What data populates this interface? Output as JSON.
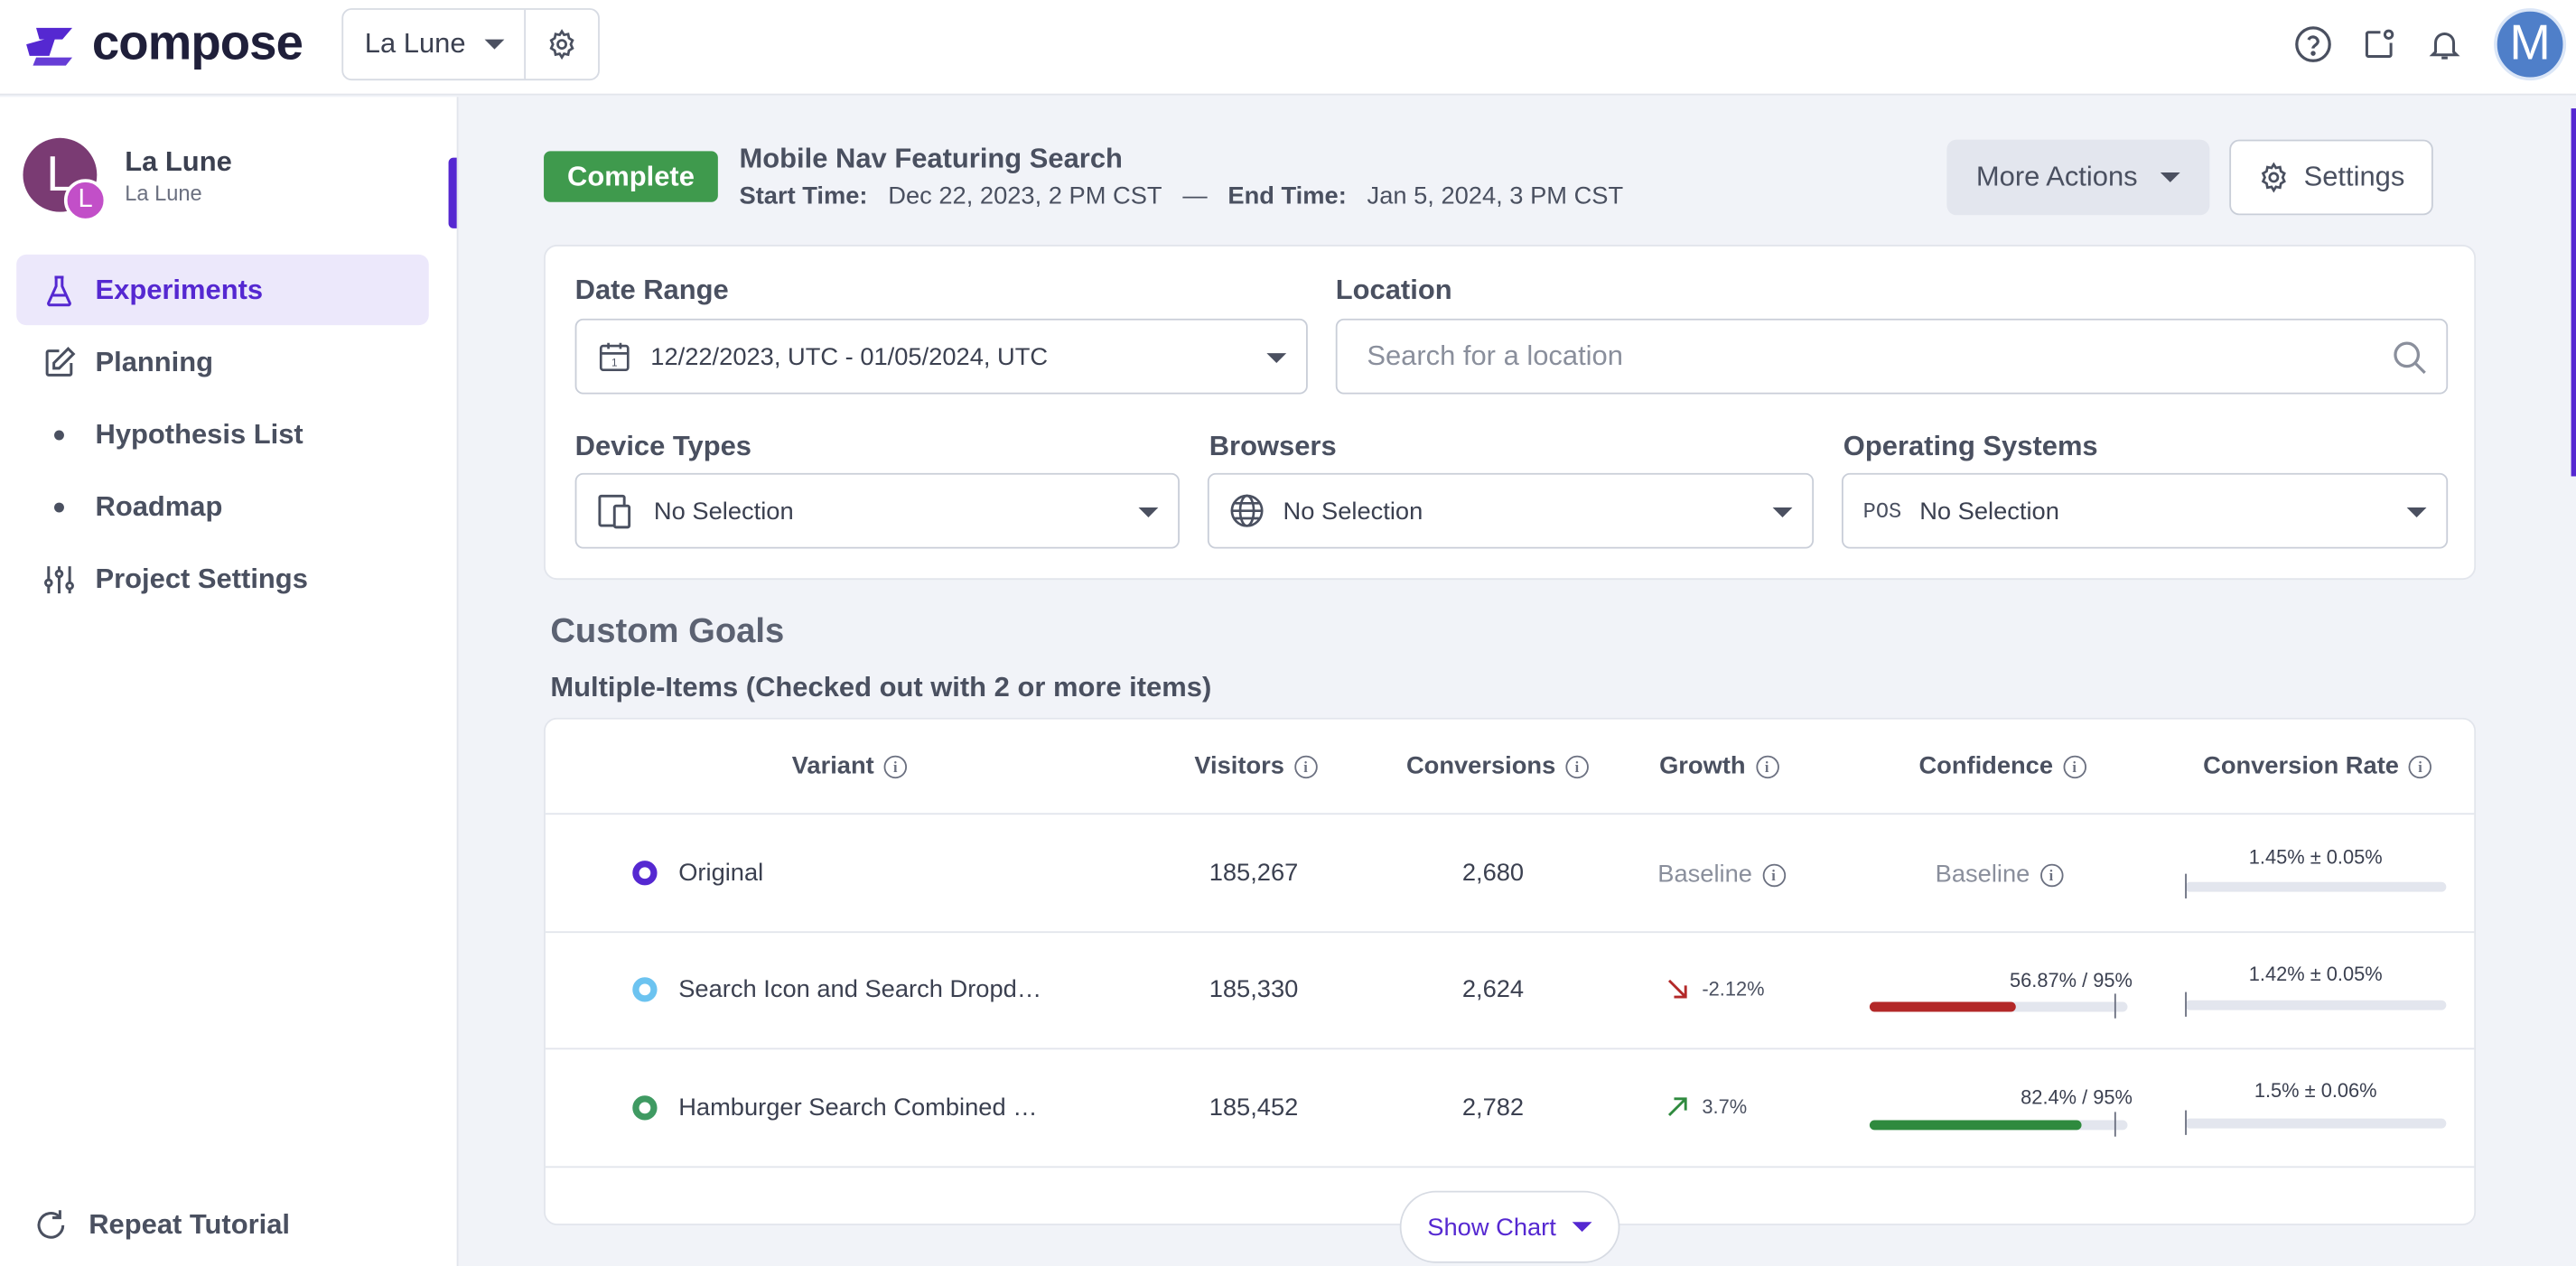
{
  "app": {
    "brand": "compose",
    "brand_color": "#5528d1"
  },
  "header": {
    "project_name": "La Lune",
    "user_initial": "M",
    "icons": [
      "help-icon",
      "share-icon",
      "bell-icon"
    ]
  },
  "sidebar": {
    "workspace_initial": "L",
    "workspace_badge": "L",
    "workspace_name": "La Lune",
    "workspace_sub": "La Lune",
    "items": [
      {
        "label": "Experiments",
        "icon": "flask-icon",
        "active": true
      },
      {
        "label": "Planning",
        "icon": "edit-icon"
      },
      {
        "label": "Hypothesis List",
        "icon": "bullet"
      },
      {
        "label": "Roadmap",
        "icon": "bullet"
      },
      {
        "label": "Project Settings",
        "icon": "sliders-icon"
      }
    ],
    "tutorial_label": "Repeat Tutorial"
  },
  "experiment": {
    "status": "Complete",
    "status_color": "#3f9a4d",
    "title": "Mobile Nav Featuring Search",
    "start_label": "Start Time:",
    "start_value": "Dec 22, 2023, 2 PM CST",
    "separator": "—",
    "end_label": "End Time:",
    "end_value": "Jan 5, 2024, 3 PM CST",
    "more_actions_label": "More Actions",
    "settings_label": "Settings"
  },
  "filters": {
    "date_range_label": "Date Range",
    "date_range_value": "12/22/2023, UTC - 01/05/2024, UTC",
    "location_label": "Location",
    "location_placeholder": "Search for a location",
    "device_label": "Device Types",
    "device_value": "No Selection",
    "browsers_label": "Browsers",
    "browsers_value": "No Selection",
    "os_label": "Operating Systems",
    "os_icon_text": "POS",
    "os_value": "No Selection"
  },
  "goals": {
    "title": "Custom Goals",
    "subtitle": "Multiple-Items (Checked out with 2 or more items)",
    "columns": [
      "Variant",
      "Visitors",
      "Conversions",
      "Growth",
      "Confidence",
      "Conversion Rate"
    ],
    "rows": [
      {
        "variant": "Original",
        "color": "#5528d1",
        "visitors": "185,267",
        "conversions": "2,680",
        "growth": "Baseline",
        "confidence": "Baseline",
        "conversion_rate": "1.45% ± 0.05%"
      },
      {
        "variant": "Search Icon and Search Dropd…",
        "color": "#6cc3f0",
        "visitors": "185,330",
        "conversions": "2,624",
        "growth": "-2.12%",
        "growth_dir": "down",
        "confidence": "56.87% / 95%",
        "confidence_value": 56.87,
        "confidence_color": "#b32828",
        "conversion_rate": "1.42% ± 0.05%"
      },
      {
        "variant": "Hamburger Search Combined …",
        "color": "#3f9a62",
        "visitors": "185,452",
        "conversions": "2,782",
        "growth": "3.7%",
        "growth_dir": "up",
        "confidence": "82.4% / 95%",
        "confidence_value": 82.4,
        "confidence_color": "#2f8a3e",
        "conversion_rate": "1.5% ± 0.06%"
      }
    ],
    "show_chart_label": "Show Chart"
  }
}
